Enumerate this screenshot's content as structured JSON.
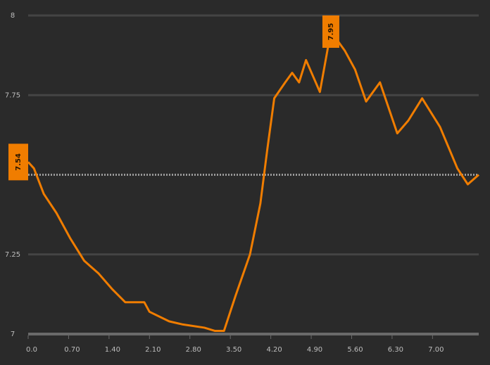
{
  "chart_data": {
    "type": "line",
    "x": [
      0,
      0.1,
      0.27,
      0.49,
      0.73,
      0.97,
      1.22,
      1.46,
      1.68,
      2.01,
      2.1,
      2.44,
      2.68,
      3.05,
      3.23,
      3.39,
      3.59,
      3.84,
      4.02,
      4.14,
      4.26,
      4.45,
      4.57,
      4.69,
      4.81,
      5.05,
      5.24,
      5.48,
      5.66,
      5.85,
      6.09,
      6.39,
      6.58,
      6.82,
      7.13,
      7.43,
      7.61,
      7.8
    ],
    "series": [
      {
        "color": "#f07d00",
        "values": [
          7.54,
          7.52,
          7.44,
          7.38,
          7.3,
          7.23,
          7.19,
          7.14,
          7.1,
          7.1,
          7.07,
          7.04,
          7.03,
          7.02,
          7.01,
          7.01,
          7.12,
          7.25,
          7.41,
          7.58,
          7.74,
          7.79,
          7.82,
          7.79,
          7.86,
          7.76,
          7.95,
          7.89,
          7.83,
          7.73,
          7.79,
          7.63,
          7.67,
          7.74,
          7.65,
          7.52,
          7.47,
          7.5
        ]
      }
    ],
    "xlim": [
      0,
      7.8
    ],
    "xticks": [
      {
        "value": 0,
        "label": "0.0"
      },
      {
        "value": 0.7,
        "label": "0.70"
      },
      {
        "value": 1.4,
        "label": "1.40"
      },
      {
        "value": 2.1,
        "label": "2.10"
      },
      {
        "value": 2.8,
        "label": "2.80"
      },
      {
        "value": 3.5,
        "label": "3.50"
      },
      {
        "value": 4.2,
        "label": "4.20"
      },
      {
        "value": 4.9,
        "label": "4.90"
      },
      {
        "value": 5.6,
        "label": "5.60"
      },
      {
        "value": 6.3,
        "label": "6.30"
      },
      {
        "value": 7.0,
        "label": "7.00"
      }
    ],
    "ylim": [
      7,
      8
    ],
    "yticks": [
      7,
      7.25,
      7.75,
      8
    ],
    "reference_line": 7.5,
    "annotations": [
      {
        "x": 0,
        "y": 7.54,
        "label": "7.54"
      },
      {
        "x": 5.24,
        "y": 7.95,
        "label": "7.95"
      }
    ],
    "grid": true
  }
}
